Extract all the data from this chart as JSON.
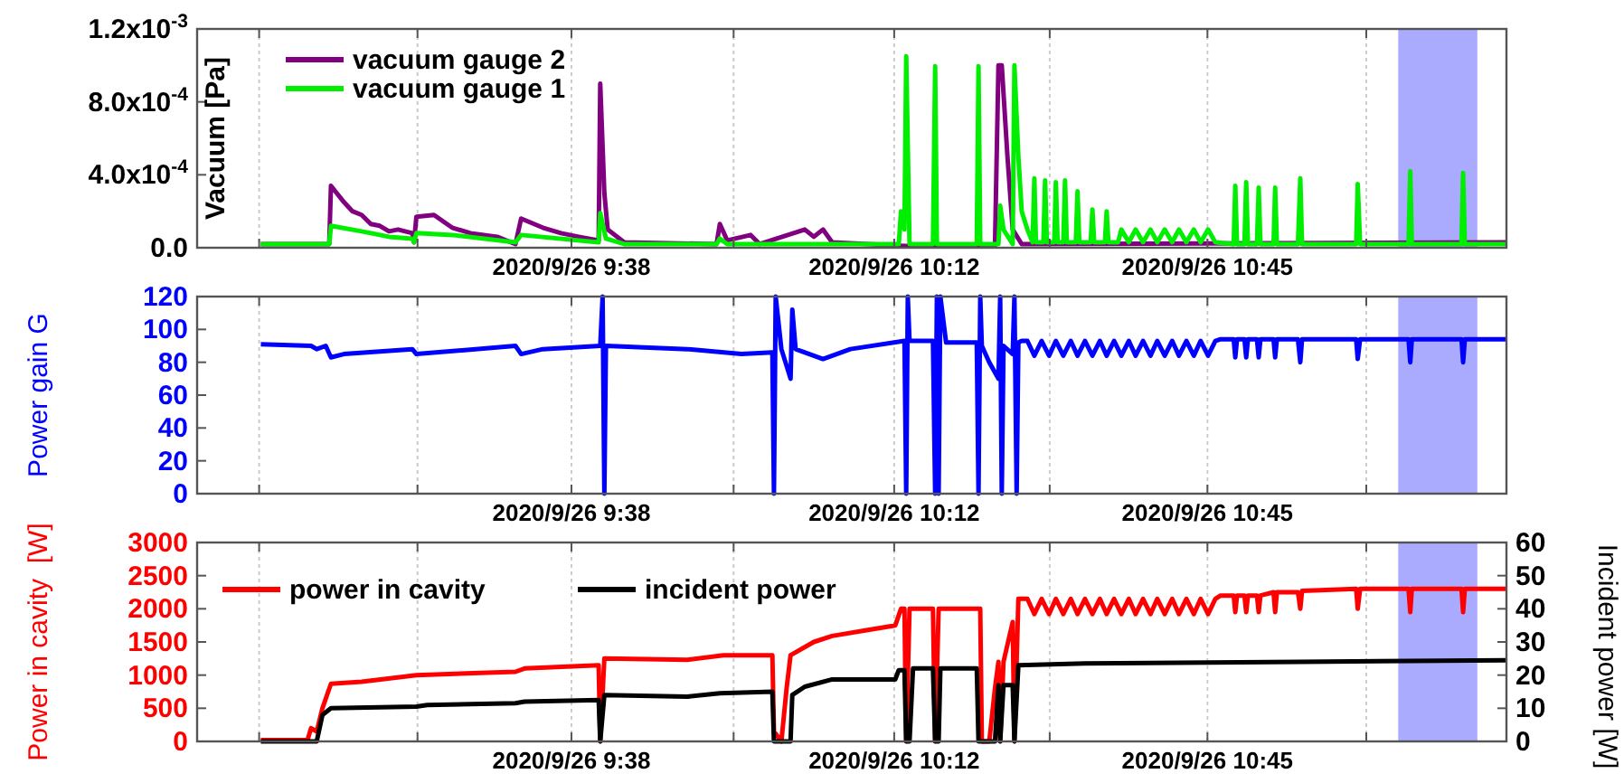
{
  "chart_data": [
    {
      "type": "line",
      "ylabel": "Vacuum [Pa]",
      "xlim": [
        "2020-09-26T08:58:34",
        "2020-09-26T11:16:30"
      ],
      "xticks": [
        {
          "value": "2020-09-26T09:05:06",
          "label": null
        },
        {
          "value": "2020-09-26T09:21:47",
          "label": null
        },
        {
          "value": "2020-09-26T09:38",
          "label": "2020/9/26 9:38"
        },
        {
          "value": "2020-09-26T09:55:05",
          "label": null
        },
        {
          "value": "2020-09-26T10:12",
          "label": "2020/9/26 10:12"
        },
        {
          "value": "2020-09-26T10:28:23",
          "label": null
        },
        {
          "value": "2020-09-26T10:45",
          "label": "2020/9/26 10:45"
        },
        {
          "value": "2020-09-26T11:01:44",
          "label": null
        }
      ],
      "ylim": [
        0,
        0.0012
      ],
      "yticks": [
        {
          "value": 0,
          "label": "0.0"
        },
        {
          "value": 0.0004,
          "label": "4.0x10$^{-4}$"
        },
        {
          "value": 0.0008,
          "label": "8.0x10$^{-4}$"
        },
        {
          "value": 0.0012,
          "label": "1.2x10$^{-3}$"
        }
      ],
      "grid": "x",
      "legend": "top left",
      "bands": [
        {
          "axis": "x",
          "from": "2020-09-26T11:05:06",
          "to": "2020-09-26T11:13:26",
          "color": "#aaaaff"
        }
      ],
      "series": [
        {
          "name": "vacuum gauge 2",
          "color": "#800080",
          "x": [
            "2020-09-26T09:05:17",
            "2020-09-26T09:12:29",
            "2020-09-26T09:12:40",
            "2020-09-26T09:13:16",
            "2020-09-26T09:14:02",
            "2020-09-26T09:14:56",
            "2020-09-26T09:15:54",
            "2020-09-26T09:16:52",
            "2020-09-26T09:17:49",
            "2020-09-26T09:18:47",
            "2020-09-26T09:19:44",
            "2020-09-26T09:21:14",
            "2020-09-26T09:21:25",
            "2020-09-26T09:21:40",
            "2020-09-26T09:23:31",
            "2020-09-26T09:25:26",
            "2020-09-26T09:27:22",
            "2020-09-26T09:30:11",
            "2020-09-26T09:32:06",
            "2020-09-26T09:32:42",
            "2020-09-26T09:34:59",
            "2020-09-26T09:36:54",
            "2020-09-26T09:38:46",
            "2020-09-26T09:40:52",
            "2020-09-26T09:41:02",
            "2020-09-26T09:41:28",
            "2020-09-26T09:41:49",
            "2020-09-26T09:43:34",
            "2020-09-26T09:53:17",
            "2020-09-26T09:53:38",
            "2020-09-26T09:54:25",
            "2020-09-26T09:56:53",
            "2020-09-26T09:57:50",
            "2020-09-26T10:02:35",
            "2020-09-26T10:03:32",
            "2020-09-26T10:04:30",
            "2020-09-26T10:05:28",
            "2020-09-26T10:13:05",
            "2020-09-26T10:22:37",
            "2020-09-26T10:22:59",
            "2020-09-26T10:23:20",
            "2020-09-26T10:23:56",
            "2020-09-26T10:24:29",
            "2020-09-26T10:25:26",
            "2020-09-26T11:16:30"
          ],
          "values": [
            2e-05,
            2e-05,
            0.00034,
            0.0003,
            0.00025,
            0.0002,
            0.00018,
            0.00013,
            0.00012,
            9e-05,
            0.0001,
            8e-05,
            3e-05,
            0.00017,
            0.00018,
            0.00011,
            8e-05,
            6e-05,
            2e-05,
            0.00016,
            0.00011,
            8e-05,
            6e-05,
            4e-05,
            0.0009,
            0.0003,
            0.0001,
            3e-05,
            2e-05,
            0.00013,
            4e-05,
            7e-05,
            2e-05,
            0.0001,
            6e-05,
            0.0001,
            3e-05,
            1e-05,
            1e-05,
            0.001,
            0.001,
            0.0005,
            0.0001,
            2e-05,
            3e-05
          ]
        },
        {
          "name": "vacuum gauge 1",
          "color": "#00ee00",
          "x": [
            "2020-09-26T09:05:17",
            "2020-09-26T09:12:29",
            "2020-09-26T09:12:40",
            "2020-09-26T09:15:54",
            "2020-09-26T09:18:47",
            "2020-09-26T09:21:14",
            "2020-09-26T09:21:25",
            "2020-09-26T09:21:40",
            "2020-09-26T09:25:26",
            "2020-09-26T09:32:06",
            "2020-09-26T09:32:42",
            "2020-09-26T09:40:52",
            "2020-09-26T09:41:02",
            "2020-09-26T09:41:38",
            "2020-09-26T09:43:34",
            "2020-09-26T09:53:17",
            "2020-09-26T09:53:38",
            "2020-09-26T09:54:25",
            "2020-09-26T10:12:29",
            "2020-09-26T10:12:43",
            "2020-09-26T10:13:05",
            "2020-09-26T10:13:16",
            "2020-09-26T10:13:37",
            "2020-09-26T10:16:05",
            "2020-09-26T10:16:19",
            "2020-09-26T10:16:30",
            "2020-09-26T10:20:42",
            "2020-09-26T10:20:53",
            "2020-09-26T10:21:04",
            "2020-09-26T10:22:59",
            "2020-09-26T10:23:10",
            "2020-09-26T10:23:31",
            "2020-09-26T10:24:29",
            "2020-09-26T10:24:40",
            "2020-09-26T10:25:05",
            "2020-09-26T10:25:26",
            "2020-09-26T10:26:02",
            "2020-09-26T10:26:35",
            "2020-09-26T10:26:46",
            "2020-09-26T10:26:56",
            "2020-09-26T10:27:43",
            "2020-09-26T10:27:54",
            "2020-09-26T10:28:05",
            "2020-09-26T10:28:52",
            "2020-09-26T10:29:02",
            "2020-09-26T10:29:13",
            "2020-09-26T10:29:49",
            "2020-09-26T10:30:00",
            "2020-09-26T10:30:11",
            "2020-09-26T10:31:08",
            "2020-09-26T10:31:19",
            "2020-09-26T10:31:30",
            "2020-09-26T10:32:42",
            "2020-09-26T10:32:53",
            "2020-09-26T10:33:04",
            "2020-09-26T10:34:12",
            "2020-09-26T10:34:23",
            "2020-09-26T10:34:34",
            "2020-09-26T10:35:35",
            "2020-09-26T10:35:56",
            "2020-09-26T10:36:43",
            "2020-09-26T10:37:26",
            "2020-09-26T10:38:13",
            "2020-09-26T10:39:00",
            "2020-09-26T10:39:43",
            "2020-09-26T10:40:30",
            "2020-09-26T10:41:17",
            "2020-09-26T10:42:00",
            "2020-09-26T10:42:47",
            "2020-09-26T10:43:34",
            "2020-09-26T10:44:17",
            "2020-09-26T10:45:04",
            "2020-09-26T10:45:50",
            "2020-09-26T10:47:46",
            "2020-09-26T10:47:56",
            "2020-09-26T10:48:07",
            "2020-09-26T10:48:54",
            "2020-09-26T10:49:05",
            "2020-09-26T10:49:16",
            "2020-09-26T10:50:13",
            "2020-09-26T10:50:24",
            "2020-09-26T10:50:35",
            "2020-09-26T10:51:58",
            "2020-09-26T10:52:08",
            "2020-09-26T10:52:19",
            "2020-09-26T10:54:32",
            "2020-09-26T10:54:47",
            "2020-09-26T10:54:58",
            "2020-09-26T11:00:40",
            "2020-09-26T11:00:50",
            "2020-09-26T11:01:05",
            "2020-09-26T11:06:11",
            "2020-09-26T11:06:22",
            "2020-09-26T11:06:32",
            "2020-09-26T11:11:46",
            "2020-09-26T11:11:56",
            "2020-09-26T11:12:07",
            "2020-09-26T11:16:30"
          ],
          "values": [
            2e-05,
            2e-05,
            0.00012,
            9e-05,
            6e-05,
            5e-05,
            3e-05,
            8e-05,
            7e-05,
            3e-05,
            7e-05,
            3e-05,
            0.00019,
            5e-05,
            2e-05,
            2e-05,
            5e-05,
            2e-05,
            2e-05,
            0.0002,
            0.0001,
            0.00105,
            2e-05,
            2e-05,
            0.000995,
            2e-05,
            2e-05,
            0.000995,
            2e-05,
            2e-05,
            0.00023,
            0.0001,
            2e-05,
            0.001,
            0.0005,
            0.0002,
            0.0001,
            3e-05,
            0.00038,
            3e-05,
            3e-05,
            0.00037,
            3e-05,
            3e-05,
            0.00036,
            3e-05,
            3e-05,
            0.00037,
            3e-05,
            3e-05,
            0.00031,
            3e-05,
            3e-05,
            0.00021,
            3e-05,
            3e-05,
            0.0002,
            3e-05,
            3e-05,
            0.0001,
            3e-05,
            0.0001,
            3e-05,
            0.0001,
            3e-05,
            0.0001,
            3e-05,
            0.0001,
            3e-05,
            0.0001,
            3e-05,
            0.0001,
            3e-05,
            2e-05,
            0.00034,
            2e-05,
            2e-05,
            0.00036,
            2e-05,
            2e-05,
            0.00033,
            2e-05,
            2e-05,
            0.00033,
            2e-05,
            2e-05,
            0.00038,
            2e-05,
            2e-05,
            0.00035,
            2e-05,
            2e-05,
            0.00042,
            2e-05,
            2e-05,
            0.00041,
            2e-05,
            2e-05
          ]
        }
      ]
    },
    {
      "type": "line",
      "ylabel": "Power gain G",
      "xlim": [
        "2020-09-26T08:58:34",
        "2020-09-26T11:16:30"
      ],
      "xticks": [
        {
          "value": "2020-09-26T09:05:06",
          "label": null
        },
        {
          "value": "2020-09-26T09:21:47",
          "label": null
        },
        {
          "value": "2020-09-26T09:38",
          "label": "2020/9/26 9:38"
        },
        {
          "value": "2020-09-26T09:55:05",
          "label": null
        },
        {
          "value": "2020-09-26T10:12",
          "label": "2020/9/26 10:12"
        },
        {
          "value": "2020-09-26T10:28:23",
          "label": null
        },
        {
          "value": "2020-09-26T10:45",
          "label": "2020/9/26 10:45"
        },
        {
          "value": "2020-09-26T11:01:44",
          "label": null
        }
      ],
      "ylim": [
        0,
        120
      ],
      "yticks": [
        0,
        20,
        40,
        60,
        80,
        100,
        120
      ],
      "grid": "x",
      "bands": [
        {
          "axis": "x",
          "from": "2020-09-26T11:05:06",
          "to": "2020-09-26T11:13:26",
          "color": "#aaaaff"
        }
      ],
      "series": [
        {
          "color": "#0000ff",
          "x": [
            "2020-09-26T09:05:17",
            "2020-09-26T09:10:34",
            "2020-09-26T09:11:10",
            "2020-09-26T09:12:07",
            "2020-09-26T09:12:40",
            "2020-09-26T09:14:02",
            "2020-09-26T09:21:14",
            "2020-09-26T09:21:40",
            "2020-09-26T09:32:06",
            "2020-09-26T09:32:42",
            "2020-09-26T09:34:59",
            "2020-09-26T09:41:02",
            "2020-09-26T09:41:17",
            "2020-09-26T09:41:28",
            "2020-09-26T09:41:38",
            "2020-09-26T09:50:13",
            "2020-09-26T09:55:55",
            "2020-09-26T09:59:10",
            "2020-09-26T09:59:20",
            "2020-09-26T09:59:31",
            "2020-09-26T10:00:07",
            "2020-09-26T10:01:05",
            "2020-09-26T10:01:16",
            "2020-09-26T10:01:37",
            "2020-09-26T10:04:30",
            "2020-09-26T10:07:23",
            "2020-09-26T10:13:05",
            "2020-09-26T10:13:16",
            "2020-09-26T10:13:26",
            "2020-09-26T10:13:37",
            "2020-09-26T10:16:05",
            "2020-09-26T10:16:19",
            "2020-09-26T10:16:30",
            "2020-09-26T10:16:41",
            "2020-09-26T10:16:52",
            "2020-09-26T10:17:28",
            "2020-09-26T10:20:42",
            "2020-09-26T10:20:53",
            "2020-09-26T10:21:04",
            "2020-09-26T10:21:14",
            "2020-09-26T10:22:01",
            "2020-09-26T10:22:59",
            "2020-09-26T10:23:10",
            "2020-09-26T10:23:20",
            "2020-09-26T10:23:31",
            "2020-09-26T10:24:29",
            "2020-09-26T10:24:40",
            "2020-09-26T10:24:54",
            "2020-09-26T10:25:05",
            "2020-09-26T10:25:26",
            "2020-09-26T10:26:02",
            "2020-09-26T10:26:46",
            "2020-09-26T10:27:32",
            "2020-09-26T10:28:19",
            "2020-09-26T10:29:02",
            "2020-09-26T10:29:49",
            "2020-09-26T10:30:36",
            "2020-09-26T10:31:19",
            "2020-09-26T10:32:06",
            "2020-09-26T10:32:53",
            "2020-09-26T10:33:40",
            "2020-09-26T10:34:23",
            "2020-09-26T10:35:10",
            "2020-09-26T10:35:56",
            "2020-09-26T10:36:43",
            "2020-09-26T10:37:26",
            "2020-09-26T10:38:13",
            "2020-09-26T10:39:00",
            "2020-09-26T10:39:43",
            "2020-09-26T10:40:30",
            "2020-09-26T10:41:17",
            "2020-09-26T10:42:00",
            "2020-09-26T10:42:47",
            "2020-09-26T10:43:34",
            "2020-09-26T10:44:17",
            "2020-09-26T10:45:04",
            "2020-09-26T10:45:50",
            "2020-09-26T10:46:23",
            "2020-09-26T10:47:46",
            "2020-09-26T10:47:56",
            "2020-09-26T10:48:07",
            "2020-09-26T10:48:54",
            "2020-09-26T10:49:05",
            "2020-09-26T10:49:16",
            "2020-09-26T10:50:13",
            "2020-09-26T10:50:24",
            "2020-09-26T10:50:35",
            "2020-09-26T10:51:58",
            "2020-09-26T10:52:08",
            "2020-09-26T10:52:19",
            "2020-09-26T10:54:32",
            "2020-09-26T10:54:47",
            "2020-09-26T10:54:58",
            "2020-09-26T11:00:40",
            "2020-09-26T11:00:50",
            "2020-09-26T11:01:05",
            "2020-09-26T11:06:11",
            "2020-09-26T11:06:22",
            "2020-09-26T11:06:32",
            "2020-09-26T11:11:46",
            "2020-09-26T11:11:56",
            "2020-09-26T11:12:07",
            "2020-09-26T11:16:30"
          ],
          "values": [
            91,
            90,
            88,
            90,
            83,
            85,
            88,
            85,
            90,
            85,
            88,
            90,
            120,
            0,
            90,
            88,
            85,
            86,
            0,
            120,
            88,
            70,
            112,
            88,
            82,
            88,
            93,
            0,
            120,
            93,
            93,
            0,
            120,
            0,
            120,
            92,
            92,
            0,
            120,
            90,
            80,
            70,
            120,
            0,
            90,
            85,
            120,
            0,
            92,
            93,
            93,
            84,
            93,
            84,
            93,
            84,
            93,
            84,
            93,
            84,
            93,
            84,
            93,
            84,
            93,
            84,
            93,
            84,
            93,
            84,
            93,
            84,
            93,
            84,
            93,
            84,
            93,
            94,
            94,
            83,
            94,
            94,
            83,
            94,
            94,
            83,
            94,
            94,
            83,
            94,
            94,
            80,
            94,
            94,
            82,
            94,
            94,
            80,
            94,
            94,
            80,
            94,
            94
          ]
        }
      ]
    },
    {
      "type": "line",
      "ylabel": "Power in cavity  [W]",
      "y2label": "Incident power [W]",
      "xlim": [
        "2020-09-26T08:58:34",
        "2020-09-26T11:16:30"
      ],
      "xticks": [
        {
          "value": "2020-09-26T09:05:06",
          "label": null
        },
        {
          "value": "2020-09-26T09:21:47",
          "label": null
        },
        {
          "value": "2020-09-26T09:38",
          "label": "2020/9/26 9:38"
        },
        {
          "value": "2020-09-26T09:55:05",
          "label": null
        },
        {
          "value": "2020-09-26T10:12",
          "label": "2020/9/26 10:12"
        },
        {
          "value": "2020-09-26T10:28:23",
          "label": null
        },
        {
          "value": "2020-09-26T10:45",
          "label": "2020/9/26 10:45"
        },
        {
          "value": "2020-09-26T11:01:44",
          "label": null
        }
      ],
      "ylim": [
        0,
        3000
      ],
      "yticks": [
        0,
        500,
        1000,
        1500,
        2000,
        2500,
        3000
      ],
      "y2lim": [
        0,
        60
      ],
      "y2ticks": [
        0,
        10,
        20,
        30,
        40,
        50,
        60
      ],
      "grid": "x",
      "legend": "top left",
      "bands": [
        {
          "axis": "x",
          "from": "2020-09-26T11:05:06",
          "to": "2020-09-26T11:13:26",
          "color": "#aaaaff"
        }
      ],
      "series": [
        {
          "name": "power in cavity",
          "color": "#ff0000",
          "x": [
            "2020-09-26T09:05:17",
            "2020-09-26T09:10:12",
            "2020-09-26T09:10:34",
            "2020-09-26T09:11:10",
            "2020-09-26T09:11:46",
            "2020-09-26T09:12:40",
            "2020-09-26T09:15:54",
            "2020-09-26T09:21:40",
            "2020-09-26T09:32:06",
            "2020-09-26T09:33:04",
            "2020-09-26T09:40:52",
            "2020-09-26T09:41:02",
            "2020-09-26T09:41:28",
            "2020-09-26T09:50:13",
            "2020-09-26T09:54:00",
            "2020-09-26T09:59:10",
            "2020-09-26T09:59:20",
            "2020-09-26T10:00:07",
            "2020-09-26T10:00:40",
            "2020-09-26T10:01:05",
            "2020-09-26T10:03:32",
            "2020-09-26T10:05:28",
            "2020-09-26T10:09:14",
            "2020-09-26T10:12:07",
            "2020-09-26T10:12:43",
            "2020-09-26T10:13:05",
            "2020-09-26T10:13:16",
            "2020-09-26T10:13:37",
            "2020-09-26T10:16:05",
            "2020-09-26T10:16:19",
            "2020-09-26T10:16:41",
            "2020-09-26T10:21:04",
            "2020-09-26T10:21:14",
            "2020-09-26T10:22:01",
            "2020-09-26T10:22:37",
            "2020-09-26T10:22:59",
            "2020-09-26T10:23:10",
            "2020-09-26T10:23:31",
            "2020-09-26T10:24:29",
            "2020-09-26T10:24:40",
            "2020-09-26T10:25:05",
            "2020-09-26T10:25:26",
            "2020-09-26T10:26:02",
            "2020-09-26T10:26:46",
            "2020-09-26T10:27:32",
            "2020-09-26T10:28:19",
            "2020-09-26T10:29:02",
            "2020-09-26T10:29:49",
            "2020-09-26T10:30:36",
            "2020-09-26T10:31:19",
            "2020-09-26T10:32:06",
            "2020-09-26T10:32:53",
            "2020-09-26T10:33:40",
            "2020-09-26T10:34:23",
            "2020-09-26T10:35:10",
            "2020-09-26T10:35:56",
            "2020-09-26T10:36:43",
            "2020-09-26T10:37:26",
            "2020-09-26T10:38:13",
            "2020-09-26T10:39:00",
            "2020-09-26T10:39:43",
            "2020-09-26T10:40:30",
            "2020-09-26T10:41:17",
            "2020-09-26T10:42:00",
            "2020-09-26T10:42:47",
            "2020-09-26T10:43:34",
            "2020-09-26T10:44:17",
            "2020-09-26T10:45:04",
            "2020-09-26T10:45:50",
            "2020-09-26T10:46:23",
            "2020-09-26T10:47:46",
            "2020-09-26T10:47:56",
            "2020-09-26T10:48:07",
            "2020-09-26T10:48:54",
            "2020-09-26T10:49:05",
            "2020-09-26T10:49:16",
            "2020-09-26T10:50:13",
            "2020-09-26T10:50:24",
            "2020-09-26T10:50:35",
            "2020-09-26T10:51:58",
            "2020-09-26T10:52:08",
            "2020-09-26T10:52:19",
            "2020-09-26T10:54:32",
            "2020-09-26T10:54:47",
            "2020-09-26T10:54:58",
            "2020-09-26T11:00:40",
            "2020-09-26T11:00:50",
            "2020-09-26T11:01:05",
            "2020-09-26T11:06:11",
            "2020-09-26T11:06:22",
            "2020-09-26T11:06:32",
            "2020-09-26T11:11:46",
            "2020-09-26T11:11:56",
            "2020-09-26T11:12:07",
            "2020-09-26T11:16:30"
          ],
          "values": [
            20,
            20,
            200,
            150,
            500,
            870,
            900,
            1000,
            1050,
            1100,
            1150,
            0,
            1250,
            1230,
            1300,
            1300,
            150,
            0,
            800,
            1300,
            1500,
            1590,
            1680,
            1750,
            2000,
            2000,
            0,
            2000,
            2000,
            0,
            2000,
            2000,
            0,
            0,
            800,
            1200,
            0,
            1200,
            1800,
            0,
            2150,
            2150,
            2150,
            1920,
            2150,
            1920,
            2150,
            1920,
            2150,
            1920,
            2150,
            1920,
            2150,
            1920,
            2150,
            1920,
            2150,
            1920,
            2150,
            1920,
            2150,
            1920,
            2150,
            1920,
            2150,
            1920,
            2150,
            1920,
            2150,
            2200,
            2200,
            1950,
            2200,
            2200,
            1950,
            2200,
            2200,
            1950,
            2200,
            2250,
            1950,
            2250,
            2250,
            2000,
            2270,
            2300,
            2000,
            2300,
            2300,
            1950,
            2300,
            2300,
            1950,
            2300,
            2300
          ]
        },
        {
          "name": "incident power",
          "color": "#000000",
          "axis": "y2",
          "x": [
            "2020-09-26T09:05:17",
            "2020-09-26T09:11:10",
            "2020-09-26T09:11:46",
            "2020-09-26T09:12:40",
            "2020-09-26T09:21:40",
            "2020-09-26T09:22:48",
            "2020-09-26T09:32:06",
            "2020-09-26T09:33:04",
            "2020-09-26T09:40:52",
            "2020-09-26T09:41:02",
            "2020-09-26T09:41:28",
            "2020-09-26T09:50:13",
            "2020-09-26T09:53:38",
            "2020-09-26T09:59:10",
            "2020-09-26T09:59:20",
            "2020-09-26T10:01:05",
            "2020-09-26T10:01:16",
            "2020-09-26T10:02:35",
            "2020-09-26T10:05:28",
            "2020-09-26T10:12:07",
            "2020-09-26T10:12:29",
            "2020-09-26T10:13:05",
            "2020-09-26T10:13:16",
            "2020-09-26T10:13:37",
            "2020-09-26T10:13:59",
            "2020-09-26T10:16:05",
            "2020-09-26T10:16:19",
            "2020-09-26T10:16:41",
            "2020-09-26T10:16:52",
            "2020-09-26T10:20:42",
            "2020-09-26T10:20:53",
            "2020-09-26T10:22:37",
            "2020-09-26T10:22:59",
            "2020-09-26T10:23:10",
            "2020-09-26T10:23:31",
            "2020-09-26T10:24:29",
            "2020-09-26T10:24:40",
            "2020-09-26T10:25:05",
            "2020-09-26T10:32:06",
            "2020-09-26T10:54:47",
            "2020-09-26T11:16:30"
          ],
          "values": [
            0,
            0,
            8,
            10,
            10.5,
            11,
            11.5,
            12,
            12.5,
            0,
            14,
            13.5,
            14.5,
            15,
            0,
            0,
            14,
            16.5,
            18.7,
            18.7,
            21.5,
            21.5,
            0,
            0,
            22,
            22,
            0,
            0,
            22,
            22,
            0,
            0,
            17,
            0,
            17,
            17,
            0,
            23,
            23.5,
            24,
            24.5
          ]
        }
      ]
    }
  ]
}
